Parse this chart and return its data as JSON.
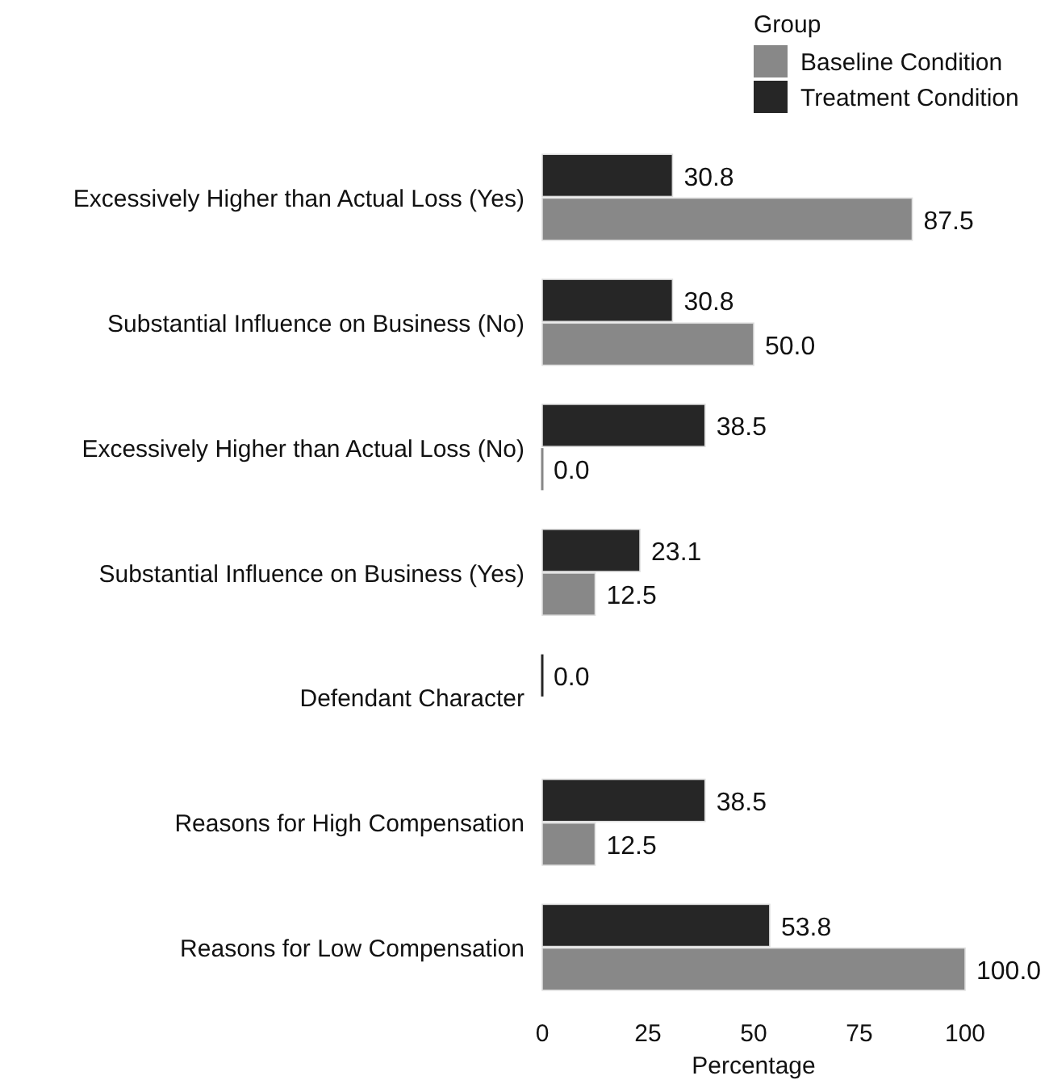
{
  "chart_data": {
    "type": "bar",
    "orientation": "horizontal",
    "xlabel": "Percentage",
    "legend_title": "Group",
    "legend": "top right",
    "grid": false,
    "categories": [
      "Excessively Higher than Actual Loss (Yes)",
      "Substantial Influence on Business (No)",
      "Excessively Higher than Actual Loss (No)",
      "Substantial Influence on Business (Yes)",
      "Defendant Character",
      "Reasons for High Compensation",
      "Reasons for Low Compensation"
    ],
    "series": [
      {
        "name": "Baseline Condition",
        "color": "#888888",
        "values": [
          87.5,
          50,
          0,
          12.5,
          null,
          12.5,
          100
        ],
        "value_labels": [
          "87.5",
          "50.0",
          "0.0",
          "12.5",
          null,
          "12.5",
          "100.0"
        ]
      },
      {
        "name": "Treatment Condition",
        "color": "#262626",
        "values": [
          30.8,
          30.8,
          38.5,
          23.1,
          0,
          38.5,
          53.8
        ],
        "value_labels": [
          "30.8",
          "30.8",
          "38.5",
          "23.1",
          "0.0",
          "38.5",
          "53.8"
        ]
      }
    ],
    "xlim": [
      0,
      100
    ],
    "xticks": [
      0,
      25,
      50,
      75,
      100
    ]
  }
}
